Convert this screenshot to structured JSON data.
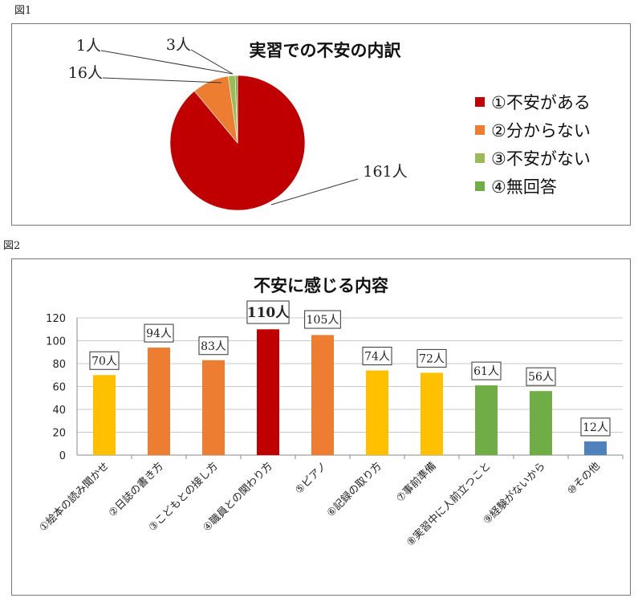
{
  "fig1_label": "図1",
  "fig2_label": "図2",
  "chart_data": [
    {
      "type": "pie",
      "title": "実習での不安の内訳",
      "categories": [
        "①不安がある",
        "②分からない",
        "③不安がない",
        "④無回答"
      ],
      "values": [
        161,
        16,
        3,
        1
      ],
      "data_labels": [
        "161人",
        "16人",
        "3人",
        "1人"
      ],
      "colors": [
        "#C00000",
        "#ED7D31",
        "#9BBB59",
        "#70AD47"
      ],
      "legend": "right"
    },
    {
      "type": "bar",
      "title": "不安に感じる内容",
      "categories": [
        "①絵本の読み聞かせ",
        "②日誌の書き方",
        "③こどもとの接し方",
        "④職員との関わり方",
        "⑤ピアノ",
        "⑥記録の取り方",
        "⑦事前準備",
        "⑧実習中に人前立つこと",
        "⑨経験がないから",
        "⑩その他"
      ],
      "values": [
        70,
        94,
        83,
        110,
        105,
        74,
        72,
        61,
        56,
        12
      ],
      "data_labels": [
        "70人",
        "94人",
        "83人",
        "110人",
        "105人",
        "74人",
        "72人",
        "61人",
        "56人",
        "12人"
      ],
      "colors": [
        "#FFC000",
        "#ED7D31",
        "#ED7D31",
        "#C00000",
        "#ED7D31",
        "#FFC000",
        "#FFC000",
        "#70AD47",
        "#70AD47",
        "#4F81BD"
      ],
      "yticks": [
        0,
        20,
        40,
        60,
        80,
        100,
        120
      ],
      "ylim": [
        0,
        120
      ],
      "grid": true
    }
  ]
}
